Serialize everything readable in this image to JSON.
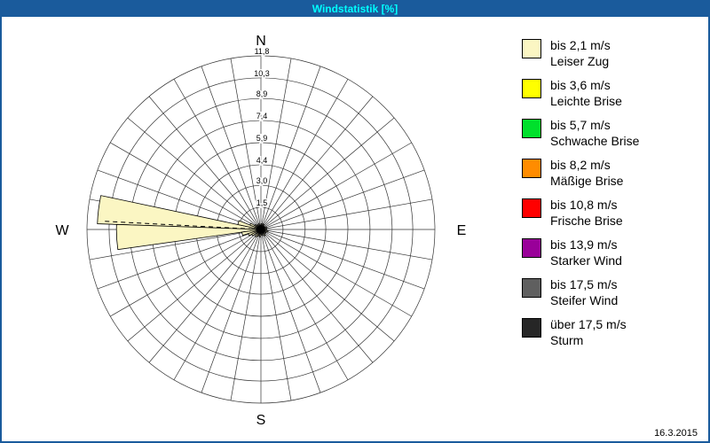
{
  "window": {
    "title": "Windstatistik [%]",
    "date": "16.3.2015"
  },
  "colors": {
    "titlebar_bg": "#1A5B9C",
    "titlebar_text": "#00FFFF",
    "frame_border": "#1A5B9C",
    "grid": "#333333",
    "petal_outline": "#000000"
  },
  "legend": [
    {
      "color": "#FBF6C3",
      "speed": "bis 2,1 m/s",
      "name": "Leiser Zug"
    },
    {
      "color": "#FFFF00",
      "speed": "bis 3,6 m/s",
      "name": "Leichte Brise"
    },
    {
      "color": "#00E02C",
      "speed": "bis 5,7 m/s",
      "name": "Schwache Brise"
    },
    {
      "color": "#FF8C00",
      "speed": "bis 8,2 m/s",
      "name": "Mäßige Brise"
    },
    {
      "color": "#FF0000",
      "speed": "bis 10,8 m/s",
      "name": "Frische Brise"
    },
    {
      "color": "#990099",
      "speed": "bis 13,9 m/s",
      "name": "Starker Wind"
    },
    {
      "color": "#5F5F5F",
      "speed": "bis 17,5 m/s",
      "name": "Steifer Wind"
    },
    {
      "color": "#262626",
      "speed": "über 17,5 m/s",
      "name": "Sturm"
    }
  ],
  "chart_data": {
    "type": "windrose",
    "title": "Windstatistik [%]",
    "unit": "%",
    "compass_labels": {
      "n": "N",
      "e": "E",
      "s": "S",
      "w": "W"
    },
    "rings": [
      1.5,
      3.0,
      4.4,
      5.9,
      7.4,
      8.9,
      10.3,
      11.8
    ],
    "ring_labels": [
      "1,5",
      "3,0",
      "4,4",
      "5,9",
      "7,4",
      "8,9",
      "10,3",
      "11,8"
    ],
    "max_value": 11.8,
    "sector_width_deg": 10,
    "grid": true,
    "legend_position": "right",
    "mean_direction": {
      "dir_deg": 273,
      "value": 10.6
    },
    "petals": [
      {
        "dir_deg": 277,
        "value": 11.1,
        "class": "bis 2,1 m/s",
        "color": "#FBF6C3"
      },
      {
        "dir_deg": 267,
        "value": 9.8,
        "class": "bis 2,1 m/s",
        "color": "#FBF6C3"
      },
      {
        "dir_deg": 287,
        "value": 1.6,
        "class": "bis 2,1 m/s",
        "color": "#FBF6C3"
      },
      {
        "dir_deg": 257,
        "value": 1.3,
        "class": "bis 2,1 m/s",
        "color": "#FBF6C3"
      },
      {
        "dir_deg": 247,
        "value": 0.9,
        "class": "bis 2,1 m/s",
        "color": "#FBF6C3"
      },
      {
        "dir_deg": 297,
        "value": 0.8,
        "class": "bis 2,1 m/s",
        "color": "#FBF6C3"
      },
      {
        "dir_deg": 307,
        "value": 0.5,
        "class": "bis 2,1 m/s",
        "color": "#FBF6C3"
      },
      {
        "dir_deg": 317,
        "value": 0.4,
        "class": "bis 2,1 m/s",
        "color": "#FBF6C3"
      },
      {
        "dir_deg": 337,
        "value": 0.4,
        "class": "bis 2,1 m/s",
        "color": "#FBF6C3"
      },
      {
        "dir_deg": 357,
        "value": 0.3,
        "class": "bis 2,1 m/s",
        "color": "#FBF6C3"
      },
      {
        "dir_deg": 7,
        "value": 0.4,
        "class": "bis 2,1 m/s",
        "color": "#FBF6C3"
      },
      {
        "dir_deg": 27,
        "value": 0.4,
        "class": "bis 2,1 m/s",
        "color": "#FBF6C3"
      },
      {
        "dir_deg": 47,
        "value": 0.3,
        "class": "bis 2,1 m/s",
        "color": "#FBF6C3"
      },
      {
        "dir_deg": 67,
        "value": 0.4,
        "class": "bis 2,1 m/s",
        "color": "#FBF6C3"
      },
      {
        "dir_deg": 87,
        "value": 0.4,
        "class": "bis 2,1 m/s",
        "color": "#FBF6C3"
      },
      {
        "dir_deg": 107,
        "value": 0.5,
        "class": "bis 2,1 m/s",
        "color": "#FBF6C3"
      },
      {
        "dir_deg": 127,
        "value": 0.4,
        "class": "bis 2,1 m/s",
        "color": "#FBF6C3"
      },
      {
        "dir_deg": 147,
        "value": 0.5,
        "class": "bis 2,1 m/s",
        "color": "#FBF6C3"
      },
      {
        "dir_deg": 167,
        "value": 0.4,
        "class": "bis 2,1 m/s",
        "color": "#FBF6C3"
      },
      {
        "dir_deg": 187,
        "value": 0.5,
        "class": "bis 2,1 m/s",
        "color": "#FBF6C3"
      },
      {
        "dir_deg": 207,
        "value": 0.5,
        "class": "bis 2,1 m/s",
        "color": "#FBF6C3"
      },
      {
        "dir_deg": 217,
        "value": 0.6,
        "class": "bis 2,1 m/s",
        "color": "#FBF6C3"
      },
      {
        "dir_deg": 237,
        "value": 0.7,
        "class": "bis 2,1 m/s",
        "color": "#FBF6C3"
      }
    ]
  }
}
